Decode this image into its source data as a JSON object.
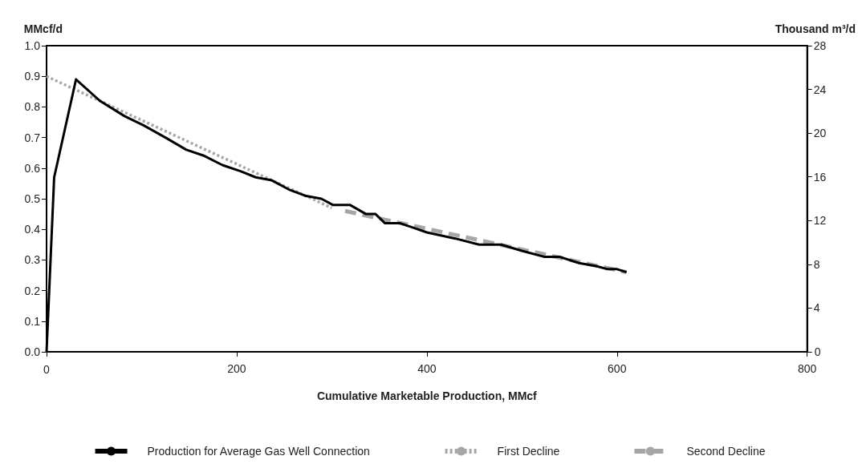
{
  "chart_data": {
    "type": "line",
    "xlabel": "Cumulative Marketable Production, MMcf",
    "ylabel": "MMcf/d",
    "y2label": "Thousand m³/d",
    "xlim": [
      0,
      800
    ],
    "xticks": [
      0,
      200,
      400,
      600,
      800
    ],
    "ylim": [
      0,
      1.0
    ],
    "yticks": [
      {
        "value": 0,
        "label": "0.0"
      },
      0.1,
      0.2,
      0.3,
      0.4,
      0.5,
      0.6,
      0.7,
      0.8,
      0.9,
      {
        "value": 1,
        "label": "1.0"
      }
    ],
    "y2lim": [
      0,
      28
    ],
    "y2ticks": [
      0,
      4,
      8,
      12,
      16,
      20,
      24,
      28
    ],
    "grid": false,
    "legend": "bottom",
    "marker": "none",
    "series": [
      {
        "name": "Production for Average Gas Well Connection",
        "color": "#000000",
        "line_style": "solid",
        "x": [
          0,
          8,
          31,
          56,
          82,
          102,
          125,
          147,
          166,
          185,
          204,
          220,
          237,
          255,
          272,
          289,
          301,
          319,
          336,
          346,
          356,
          372,
          400,
          430,
          455,
          478,
          500,
          524,
          540,
          560,
          578,
          590,
          600,
          610
        ],
        "values": [
          0,
          0.57,
          0.89,
          0.82,
          0.77,
          0.74,
          0.7,
          0.66,
          0.64,
          0.61,
          0.59,
          0.57,
          0.56,
          0.53,
          0.51,
          0.5,
          0.48,
          0.48,
          0.45,
          0.45,
          0.42,
          0.42,
          0.39,
          0.37,
          0.35,
          0.35,
          0.33,
          0.31,
          0.31,
          0.29,
          0.28,
          0.27,
          0.27,
          0.26
        ]
      },
      {
        "name": "First Decline",
        "color": "#a6a6a6",
        "line_style": "dotted",
        "x": [
          0,
          300
        ],
        "values": [
          0.9,
          0.47
        ]
      },
      {
        "name": "Second Decline",
        "color": "#a6a6a6",
        "line_style": "dashed",
        "x": [
          314,
          610
        ],
        "values": [
          0.46,
          0.26
        ]
      }
    ]
  }
}
